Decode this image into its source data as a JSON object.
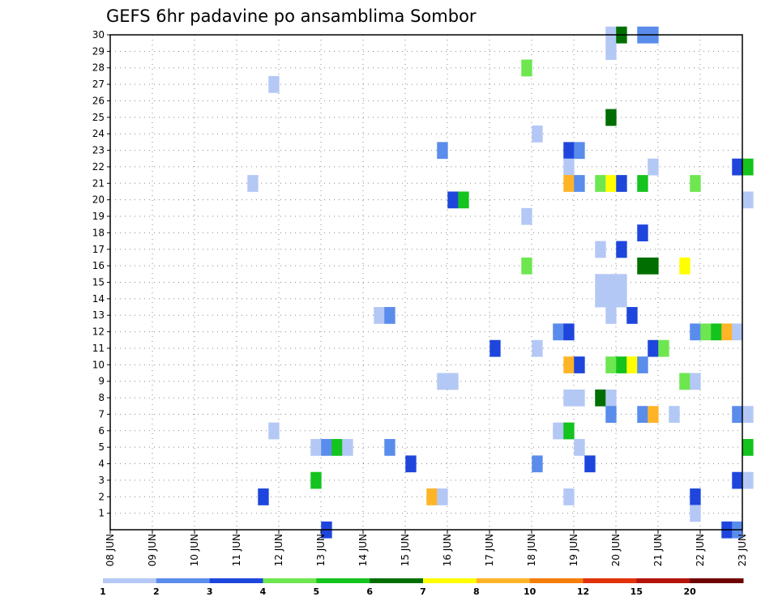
{
  "chart_data": {
    "type": "heatmap",
    "title": "GEFS 6hr padavine po ansamblima Sombor",
    "xlabel": "",
    "ylabel": "",
    "x_ticks": [
      "08 JUN",
      "09 JUN",
      "10 JUN",
      "11 JUN",
      "12 JUN",
      "13 JUN",
      "14 JUN",
      "15 JUN",
      "16 JUN",
      "17 JUN",
      "18 JUN",
      "19 JUN",
      "20 JUN",
      "21 JUN",
      "22 JUN",
      "23 JUN"
    ],
    "y_ticks": [
      "1",
      "2",
      "3",
      "4",
      "5",
      "6",
      "7",
      "8",
      "9",
      "10",
      "11",
      "12",
      "13",
      "14",
      "15",
      "16",
      "17",
      "18",
      "19",
      "20",
      "21",
      "22",
      "23",
      "24",
      "25",
      "26",
      "27",
      "28",
      "29",
      "30"
    ],
    "xlim_days": [
      0,
      15
    ],
    "ylim": [
      0,
      30
    ],
    "grid": true,
    "colorbar": {
      "labels": [
        "1",
        "2",
        "3",
        "4",
        "5",
        "6",
        "7",
        "8",
        "10",
        "12",
        "15",
        "20"
      ],
      "colors": [
        "#b4c8f5",
        "#5a8ceb",
        "#1e46dc",
        "#6ee650",
        "#14c31e",
        "#006e00",
        "#ffff00",
        "#ffb428",
        "#f57d0a",
        "#e1320a",
        "#b4140a",
        "#6e0000"
      ]
    },
    "cells": [
      [
        0,
        30,
        11.88
      ],
      [
        1,
        30,
        12.63
      ],
      [
        1,
        30,
        12.88
      ],
      [
        5,
        30,
        12.13
      ],
      [
        0,
        29,
        11.88
      ],
      [
        3,
        28,
        9.88
      ],
      [
        0,
        27,
        3.88
      ],
      [
        5,
        25,
        11.88
      ],
      [
        0,
        24,
        10.13
      ],
      [
        1,
        23,
        7.88
      ],
      [
        2,
        23,
        10.88
      ],
      [
        1,
        23,
        11.13
      ],
      [
        0,
        22,
        10.88
      ],
      [
        0,
        22,
        12.88
      ],
      [
        2,
        22,
        14.88
      ],
      [
        4,
        22,
        15.13
      ],
      [
        0,
        21,
        3.38
      ],
      [
        7,
        21,
        10.88
      ],
      [
        1,
        21,
        11.13
      ],
      [
        3,
        21,
        11.63
      ],
      [
        6,
        21,
        11.88
      ],
      [
        2,
        21,
        12.13
      ],
      [
        4,
        21,
        12.63
      ],
      [
        3,
        21,
        13.88
      ],
      [
        2,
        20,
        8.13
      ],
      [
        4,
        20,
        8.38
      ],
      [
        0,
        20,
        15.13
      ],
      [
        0,
        19,
        9.88
      ],
      [
        2,
        18,
        12.63
      ],
      [
        0,
        17,
        11.63
      ],
      [
        2,
        17,
        12.13
      ],
      [
        3,
        16,
        9.88
      ],
      [
        5,
        16,
        12.63
      ],
      [
        5,
        16,
        12.88
      ],
      [
        6,
        16,
        13.63
      ],
      [
        0,
        15,
        11.63
      ],
      [
        0,
        15,
        11.88
      ],
      [
        0,
        15,
        12.13
      ],
      [
        0,
        14,
        11.63
      ],
      [
        0,
        14,
        11.88
      ],
      [
        0,
        14,
        12.13
      ],
      [
        0,
        13,
        6.38
      ],
      [
        1,
        13,
        6.63
      ],
      [
        0,
        13,
        11.88
      ],
      [
        2,
        13,
        12.38
      ],
      [
        1,
        12,
        10.63
      ],
      [
        2,
        12,
        10.88
      ],
      [
        1,
        12,
        13.88
      ],
      [
        3,
        12,
        14.13
      ],
      [
        4,
        12,
        14.38
      ],
      [
        7,
        12,
        14.63
      ],
      [
        0,
        12,
        14.88
      ],
      [
        2,
        11,
        9.13
      ],
      [
        0,
        11,
        10.13
      ],
      [
        2,
        11,
        12.88
      ],
      [
        3,
        11,
        13.13
      ],
      [
        7,
        10,
        10.88
      ],
      [
        2,
        10,
        11.13
      ],
      [
        3,
        10,
        11.88
      ],
      [
        4,
        10,
        12.13
      ],
      [
        6,
        10,
        12.38
      ],
      [
        1,
        10,
        12.63
      ],
      [
        0,
        9,
        7.88
      ],
      [
        0,
        9,
        8.13
      ],
      [
        3,
        9,
        13.63
      ],
      [
        0,
        9,
        13.88
      ],
      [
        0,
        8,
        10.88
      ],
      [
        0,
        8,
        11.13
      ],
      [
        5,
        8,
        11.63
      ],
      [
        0,
        8,
        11.88
      ],
      [
        1,
        7,
        11.88
      ],
      [
        1,
        7,
        12.63
      ],
      [
        7,
        7,
        12.88
      ],
      [
        0,
        7,
        13.38
      ],
      [
        1,
        7,
        14.88
      ],
      [
        0,
        7,
        15.13
      ],
      [
        0,
        6,
        3.88
      ],
      [
        0,
        6,
        10.63
      ],
      [
        4,
        6,
        10.88
      ],
      [
        0,
        5,
        4.88
      ],
      [
        1,
        5,
        5.13
      ],
      [
        4,
        5,
        5.38
      ],
      [
        0,
        5,
        5.63
      ],
      [
        1,
        5,
        6.63
      ],
      [
        0,
        5,
        11.13
      ],
      [
        4,
        5,
        15.13
      ],
      [
        2,
        4,
        7.13
      ],
      [
        1,
        4,
        10.13
      ],
      [
        2,
        4,
        11.38
      ],
      [
        4,
        3,
        4.88
      ],
      [
        2,
        3,
        14.88
      ],
      [
        0,
        3,
        15.13
      ],
      [
        2,
        2,
        3.63
      ],
      [
        7,
        2,
        7.63
      ],
      [
        0,
        2,
        7.88
      ],
      [
        0,
        2,
        10.88
      ],
      [
        2,
        2,
        13.88
      ],
      [
        0,
        1,
        13.88
      ],
      [
        2,
        0,
        5.13
      ],
      [
        2,
        0,
        14.63
      ],
      [
        1,
        0,
        14.88
      ]
    ]
  }
}
